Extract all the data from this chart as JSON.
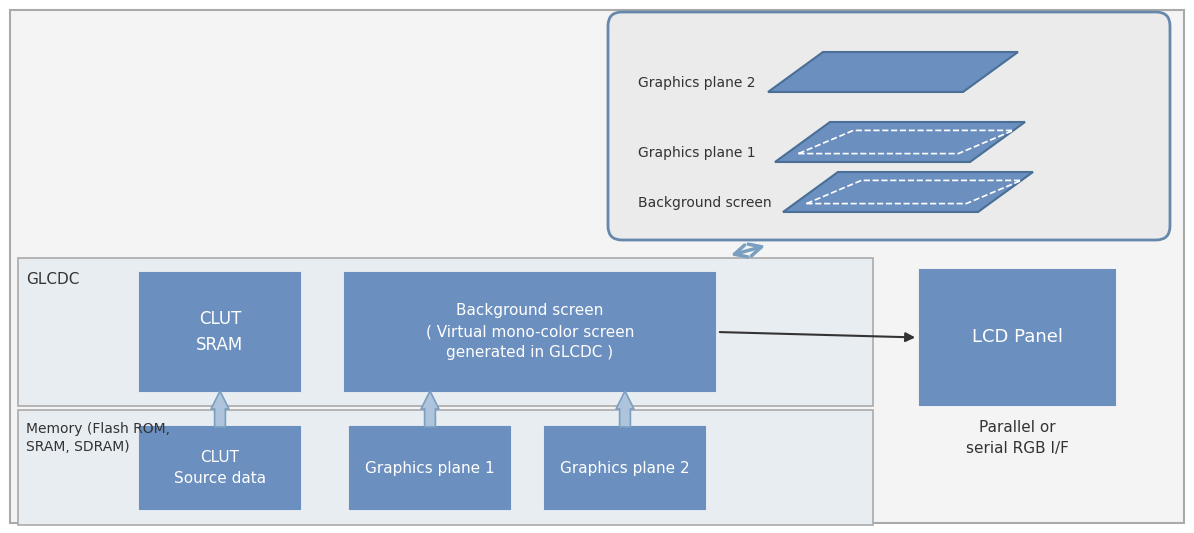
{
  "bg_color": "#ffffff",
  "outer_border_fill": "#f4f4f4",
  "outer_border_edge": "#aaaaaa",
  "box_blue": "#6b8fbe",
  "container_fill": "#e8edf2",
  "container_edge": "#aaaaaa",
  "arrow_color": "#7a9fc0",
  "arrow_fill": "#adc4dc",
  "plane_fill": "#6b8fbe",
  "plane_edge_white": "#ffffff",
  "inset_fill": "#ebebeb",
  "inset_edge": "#6688aa",
  "glcdc_label": "GLCDC",
  "memory_label": "Memory (Flash ROM,\nSRAM, SDRAM)",
  "clut_sram_label": "CLUT\nSRAM",
  "bg_screen_label": "Background screen\n( Virtual mono-color screen\ngenerated in GLCDC )",
  "lcd_panel_label": "LCD Panel",
  "clut_source_label": "CLUT\nSource data",
  "gp1_label": "Graphics plane 1",
  "gp2_label": "Graphics plane 2",
  "parallel_label": "Parallel or\nserial RGB I/F",
  "legend_gp2": "Graphics plane 2",
  "legend_gp1": "Graphics plane 1",
  "legend_bg": "Background screen",
  "label_color": "#333333",
  "white_text": "#ffffff"
}
